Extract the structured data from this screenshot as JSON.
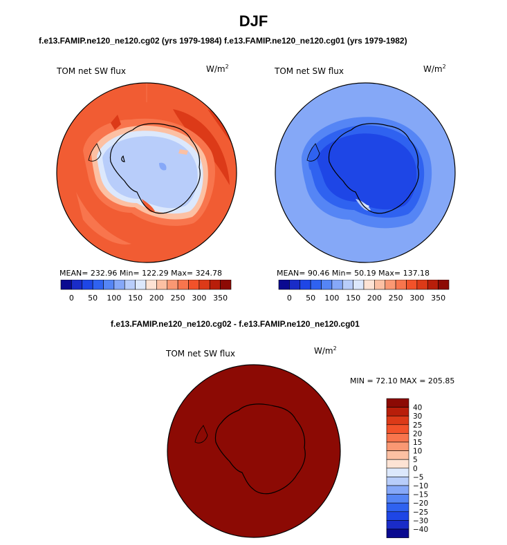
{
  "figure": {
    "title": "DJF",
    "runs_label": "f.e13.FAMIP.ne120_ne120.cg02 (yrs 1979-1984) f.e13.FAMIP.ne120_ne120.cg01 (yrs 1979-1982)",
    "diff_label": "f.e13.FAMIP.ne120_ne120.cg02 - f.e13.FAMIP.ne120_ne120.cg01"
  },
  "panels": [
    {
      "variable": "TOM net SW flux",
      "units_base": "W/m",
      "units_exp": "2",
      "stats": "MEAN=  232.96   Min=  122.29   Max=  324.78"
    },
    {
      "variable": "TOM net SW flux",
      "units_base": "W/m",
      "units_exp": "2",
      "stats": "MEAN=   90.46   Min=   50.19   Max=  137.18"
    },
    {
      "variable": "TOM net SW flux",
      "units_base": "W/m",
      "units_exp": "2",
      "stats": "MIN =  72.10 MAX = 205.85"
    }
  ],
  "colorbar_horizontal": {
    "colors": [
      "#0a0a90",
      "#1a2cc8",
      "#1e46e6",
      "#2f62f0",
      "#5585f5",
      "#86a8f8",
      "#b8cdfa",
      "#dce8fc",
      "#fde3d4",
      "#fcc0a3",
      "#fa9873",
      "#f8754d",
      "#f2522a",
      "#dc3a18",
      "#b81e0a",
      "#8c0a04"
    ],
    "labels": [
      "0",
      "50",
      "100",
      "150",
      "200",
      "250",
      "300",
      "350"
    ]
  },
  "colorbar_vertical": {
    "colors": [
      "#8c0a04",
      "#b81e0a",
      "#dc3a18",
      "#f2522a",
      "#f8754d",
      "#fa9873",
      "#fcc0a3",
      "#fde3d4",
      "#dce8fc",
      "#b8cdfa",
      "#86a8f8",
      "#5585f5",
      "#2f62f0",
      "#1e46e6",
      "#1a2cc8",
      "#0a0a90"
    ],
    "labels": [
      "40",
      "30",
      "25",
      "20",
      "15",
      "10",
      "5",
      "0",
      "−5",
      "−10",
      "−15",
      "−20",
      "−25",
      "−30",
      "−40"
    ]
  },
  "map_fields": {
    "left_base": "#f15c33",
    "right_base": "#85a8f7",
    "diff_fill": "#8c0a04"
  }
}
